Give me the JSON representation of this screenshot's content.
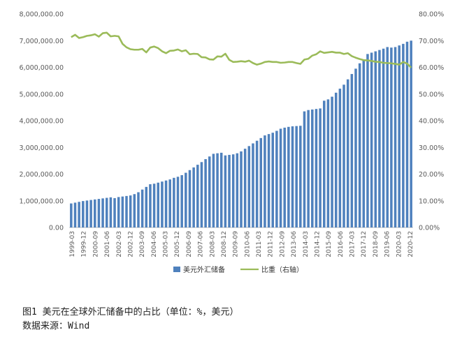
{
  "chart_data": {
    "type": "bar",
    "left_axis": {
      "ticks": [
        "0.00",
        "1,000,000.00",
        "2,000,000.00",
        "3,000,000.00",
        "4,000,000.00",
        "5,000,000.00",
        "6,000,000.00",
        "7,000,000.00",
        "8,000,000.00"
      ],
      "ylim": [
        0,
        8000000
      ]
    },
    "right_axis": {
      "ticks": [
        "0.00%",
        "10.00%",
        "20.00%",
        "30.00%",
        "40.00%",
        "50.00%",
        "60.00%",
        "70.00%",
        "80.00%"
      ],
      "ylim": [
        0,
        80
      ]
    },
    "x_tick_labels": [
      "1999-03",
      "1999-12",
      "2000-09",
      "2001-06",
      "2002-03",
      "2002-12",
      "2003-09",
      "2004-06",
      "2005-03",
      "2005-12",
      "2006-09",
      "2007-06",
      "2008-03",
      "2008-12",
      "2009-09",
      "2010-06",
      "2011-03",
      "2011-12",
      "2012-09",
      "2013-06",
      "2014-03",
      "2014-12",
      "2015-09",
      "2016-06",
      "2017-03",
      "2017-12",
      "2018-09",
      "2019-06",
      "2020-03",
      "2020-12"
    ],
    "series": [
      {
        "name": "美元外汇储备",
        "type": "bar",
        "axis": "left",
        "color": "#4f81bd",
        "values": [
          900000,
          930000,
          960000,
          990000,
          1010000,
          1030000,
          1050000,
          1070000,
          1090000,
          1110000,
          1130000,
          1100000,
          1140000,
          1160000,
          1180000,
          1200000,
          1250000,
          1320000,
          1420000,
          1520000,
          1620000,
          1640000,
          1680000,
          1720000,
          1760000,
          1800000,
          1860000,
          1900000,
          1960000,
          2050000,
          2150000,
          2250000,
          2350000,
          2450000,
          2560000,
          2660000,
          2760000,
          2780000,
          2800000,
          2700000,
          2720000,
          2740000,
          2780000,
          2850000,
          2950000,
          3050000,
          3150000,
          3250000,
          3350000,
          3450000,
          3500000,
          3550000,
          3620000,
          3700000,
          3740000,
          3770000,
          3790000,
          3800000,
          3810000,
          4350000,
          4400000,
          4420000,
          4440000,
          4460000,
          4750000,
          4800000,
          4900000,
          5050000,
          5200000,
          5350000,
          5550000,
          5750000,
          5950000,
          6150000,
          6300000,
          6500000,
          6550000,
          6600000,
          6650000,
          6700000,
          6760000,
          6740000,
          6760000,
          6820000,
          6880000,
          6960000,
          7000000
        ]
      },
      {
        "name": "比重（右轴）",
        "type": "line",
        "axis": "right",
        "color": "#9bbb59",
        "values": [
          71.3,
          72.2,
          71.0,
          71.3,
          71.8,
          72.0,
          72.4,
          71.5,
          72.8,
          73.0,
          71.6,
          71.8,
          71.6,
          68.8,
          67.5,
          66.8,
          66.6,
          66.6,
          66.9,
          65.6,
          67.4,
          67.8,
          67.2,
          66.0,
          65.3,
          66.2,
          66.3,
          66.7,
          66.0,
          66.4,
          64.9,
          65.1,
          65.0,
          63.8,
          63.7,
          63.0,
          62.9,
          64.1,
          64.0,
          65.1,
          62.8,
          62.0,
          62.1,
          62.3,
          62.1,
          62.5,
          61.6,
          61.0,
          61.4,
          62.0,
          62.2,
          62.0,
          62.0,
          61.7,
          61.8,
          62.0,
          62.0,
          61.6,
          61.3,
          62.9,
          63.2,
          64.4,
          64.9,
          66.0,
          65.4,
          65.6,
          65.8,
          65.5,
          65.5,
          65.0,
          65.3,
          64.2,
          63.6,
          63.1,
          62.7,
          62.6,
          62.4,
          62.1,
          62.0,
          61.7,
          61.6,
          61.5,
          61.3,
          61.0,
          62.0,
          61.4,
          59.9
        ]
      }
    ],
    "legend_position": "bottom",
    "grid": false
  },
  "caption": {
    "line1": "图1  美元在全球外汇储备中的占比（单位：%，美元）",
    "line2": "数据来源：Wind"
  }
}
